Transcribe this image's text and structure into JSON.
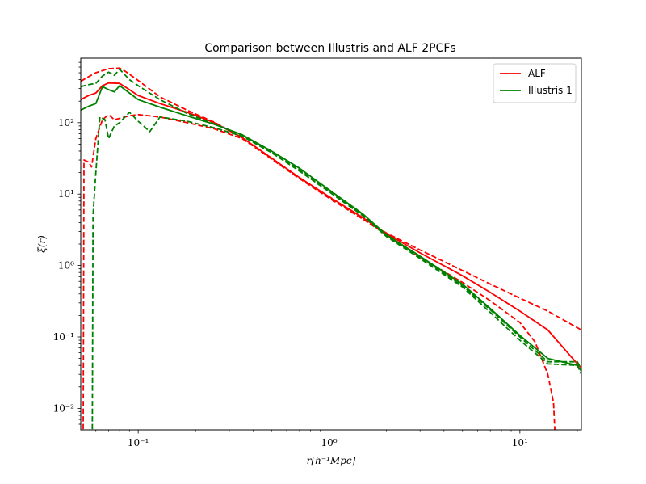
{
  "chart_data": {
    "type": "line",
    "title": "Comparison between Illustris and ALF 2PCFs",
    "xlabel": "r[h⁻¹Mpc]",
    "ylabel": "ξ(r)",
    "xscale": "log",
    "yscale": "log",
    "xlim": [
      0.05,
      21
    ],
    "ylim": [
      0.005,
      800
    ],
    "x_ticks": [
      {
        "value": 0.1,
        "label": "10⁻¹"
      },
      {
        "value": 1,
        "label": "10⁰"
      },
      {
        "value": 10,
        "label": "10¹"
      }
    ],
    "y_ticks": [
      {
        "value": 0.01,
        "label": "10⁻²"
      },
      {
        "value": 0.1,
        "label": "10⁻¹"
      },
      {
        "value": 1,
        "label": "10⁰"
      },
      {
        "value": 10,
        "label": "10¹"
      },
      {
        "value": 100,
        "label": "10²"
      }
    ],
    "legend": {
      "placement": "upper right",
      "entries": [
        {
          "label": "ALF",
          "color": "#ff0000"
        },
        {
          "label": "Illustris 1",
          "color": "#008000"
        }
      ]
    },
    "series": [
      {
        "name": "ALF",
        "color": "#ff0000",
        "style": "solid",
        "points": [
          [
            0.05,
            210
          ],
          [
            0.055,
            240
          ],
          [
            0.06,
            260
          ],
          [
            0.065,
            330
          ],
          [
            0.07,
            360
          ],
          [
            0.08,
            355
          ],
          [
            0.09,
            290
          ],
          [
            0.1,
            240
          ],
          [
            0.13,
            185
          ],
          [
            0.18,
            140
          ],
          [
            0.25,
            100
          ],
          [
            0.35,
            62
          ],
          [
            0.5,
            32
          ],
          [
            0.7,
            17
          ],
          [
            1.0,
            9.2
          ],
          [
            1.5,
            4.7
          ],
          [
            2.0,
            2.8
          ],
          [
            3.0,
            1.5
          ],
          [
            5.0,
            0.72
          ],
          [
            7.0,
            0.42
          ],
          [
            10.0,
            0.23
          ],
          [
            14.0,
            0.125
          ],
          [
            20.0,
            0.042
          ],
          [
            21.0,
            0.037
          ]
        ]
      },
      {
        "name": "",
        "color": "#ff0000",
        "style": "dashed",
        "points": [
          [
            0.05,
            380
          ],
          [
            0.055,
            440
          ],
          [
            0.06,
            500
          ],
          [
            0.07,
            570
          ],
          [
            0.08,
            580
          ],
          [
            0.085,
            530
          ],
          [
            0.1,
            390
          ],
          [
            0.13,
            230
          ],
          [
            0.18,
            150
          ],
          [
            0.25,
            102
          ],
          [
            0.35,
            62
          ],
          [
            0.5,
            31
          ],
          [
            0.7,
            16.5
          ],
          [
            1.0,
            8.8
          ],
          [
            1.5,
            4.5
          ],
          [
            2.0,
            2.85
          ],
          [
            3.0,
            1.65
          ],
          [
            5.0,
            0.85
          ],
          [
            7.0,
            0.55
          ],
          [
            10.0,
            0.35
          ],
          [
            14.0,
            0.23
          ],
          [
            21.0,
            0.125
          ]
        ]
      },
      {
        "name": "",
        "color": "#ff0000",
        "style": "dashed",
        "points": [
          [
            0.0515,
            0.004
          ],
          [
            0.052,
            30
          ],
          [
            0.055,
            28
          ],
          [
            0.057,
            24
          ],
          [
            0.06,
            60
          ],
          [
            0.065,
            110
          ],
          [
            0.07,
            130
          ],
          [
            0.075,
            110
          ],
          [
            0.08,
            115
          ],
          [
            0.09,
            125
          ],
          [
            0.1,
            130
          ],
          [
            0.13,
            120
          ],
          [
            0.18,
            100
          ],
          [
            0.25,
            82
          ],
          [
            0.35,
            60
          ],
          [
            0.5,
            31
          ],
          [
            0.7,
            16.5
          ],
          [
            1.0,
            8.8
          ],
          [
            1.5,
            4.5
          ],
          [
            2.0,
            2.7
          ],
          [
            3.0,
            1.3
          ],
          [
            5.0,
            0.58
          ],
          [
            7.0,
            0.32
          ],
          [
            10.0,
            0.16
          ],
          [
            12.0,
            0.085
          ],
          [
            14.0,
            0.03
          ],
          [
            15.0,
            0.012
          ],
          [
            15.3,
            0.004
          ]
        ]
      },
      {
        "name": "Illustris 1",
        "color": "#008000",
        "style": "solid",
        "points": [
          [
            0.05,
            150
          ],
          [
            0.055,
            170
          ],
          [
            0.06,
            185
          ],
          [
            0.065,
            320
          ],
          [
            0.07,
            290
          ],
          [
            0.075,
            270
          ],
          [
            0.08,
            330
          ],
          [
            0.09,
            260
          ],
          [
            0.1,
            210
          ],
          [
            0.13,
            165
          ],
          [
            0.18,
            125
          ],
          [
            0.25,
            95
          ],
          [
            0.35,
            68
          ],
          [
            0.5,
            40
          ],
          [
            0.7,
            23
          ],
          [
            1.0,
            11.5
          ],
          [
            1.5,
            5.3
          ],
          [
            2.0,
            2.7
          ],
          [
            3.0,
            1.35
          ],
          [
            5.0,
            0.55
          ],
          [
            7.0,
            0.25
          ],
          [
            10.0,
            0.105
          ],
          [
            14.0,
            0.05
          ],
          [
            20.0,
            0.04
          ],
          [
            21.0,
            0.033
          ]
        ]
      },
      {
        "name": "",
        "color": "#008000",
        "style": "dashed",
        "points": [
          [
            0.05,
            320
          ],
          [
            0.055,
            340
          ],
          [
            0.06,
            355
          ],
          [
            0.065,
            450
          ],
          [
            0.07,
            510
          ],
          [
            0.075,
            460
          ],
          [
            0.08,
            560
          ],
          [
            0.09,
            400
          ],
          [
            0.1,
            330
          ],
          [
            0.13,
            210
          ],
          [
            0.18,
            135
          ],
          [
            0.25,
            96
          ],
          [
            0.35,
            67
          ],
          [
            0.5,
            39
          ],
          [
            0.7,
            22
          ],
          [
            1.0,
            11.2
          ],
          [
            1.5,
            5.1
          ],
          [
            2.0,
            2.6
          ],
          [
            3.0,
            1.3
          ],
          [
            5.0,
            0.52
          ],
          [
            7.0,
            0.24
          ],
          [
            10.0,
            0.1
          ],
          [
            14.0,
            0.045
          ],
          [
            20.0,
            0.045
          ],
          [
            21.0,
            0.035
          ]
        ]
      },
      {
        "name": "",
        "color": "#008000",
        "style": "dashed",
        "points": [
          [
            0.0575,
            0.004
          ],
          [
            0.058,
            5
          ],
          [
            0.06,
            20
          ],
          [
            0.063,
            120
          ],
          [
            0.067,
            110
          ],
          [
            0.07,
            60
          ],
          [
            0.075,
            90
          ],
          [
            0.08,
            100
          ],
          [
            0.09,
            140
          ],
          [
            0.1,
            105
          ],
          [
            0.115,
            75
          ],
          [
            0.13,
            120
          ],
          [
            0.18,
            105
          ],
          [
            0.25,
            85
          ],
          [
            0.35,
            65
          ],
          [
            0.5,
            38
          ],
          [
            0.7,
            21
          ],
          [
            1.0,
            10.8
          ],
          [
            1.5,
            5.0
          ],
          [
            2.0,
            2.55
          ],
          [
            3.0,
            1.25
          ],
          [
            5.0,
            0.5
          ],
          [
            7.0,
            0.22
          ],
          [
            10.0,
            0.09
          ],
          [
            14.0,
            0.042
          ],
          [
            20.0,
            0.04
          ],
          [
            21.0,
            0.03
          ]
        ]
      }
    ]
  }
}
